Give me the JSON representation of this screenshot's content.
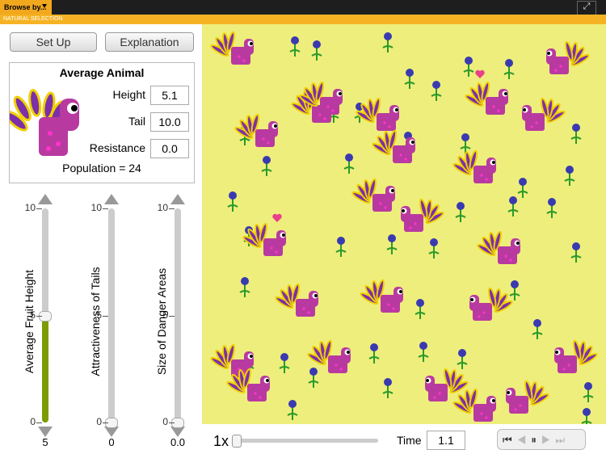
{
  "top_bar": {
    "menu": "Browse by...",
    "app_title": "NATURAL SELECTION"
  },
  "buttons": [
    "Set Up",
    "Explanation"
  ],
  "average_animal": {
    "title": "Average Animal",
    "fields": [
      {
        "label": "Height",
        "value": "5.1"
      },
      {
        "label": "Tail",
        "value": "10.0"
      },
      {
        "label": "Resistance",
        "value": "0.0"
      }
    ],
    "population": "Population = 24"
  },
  "sliders": [
    {
      "label": "Average Fruit Height",
      "ticks": [
        10,
        5,
        0
      ],
      "value": 5
    },
    {
      "label": "Attractiveness of Tails",
      "ticks": [
        10,
        5,
        0
      ],
      "value": 0
    },
    {
      "label": "Size of Danger Areas",
      "ticks": [
        10,
        5,
        0
      ],
      "value": {
        "value": 0,
        "label": "0.0"
      }
    }
  ],
  "controls": {
    "speed": "1x",
    "time_label": "Time",
    "time_value": "1.1"
  }
}
